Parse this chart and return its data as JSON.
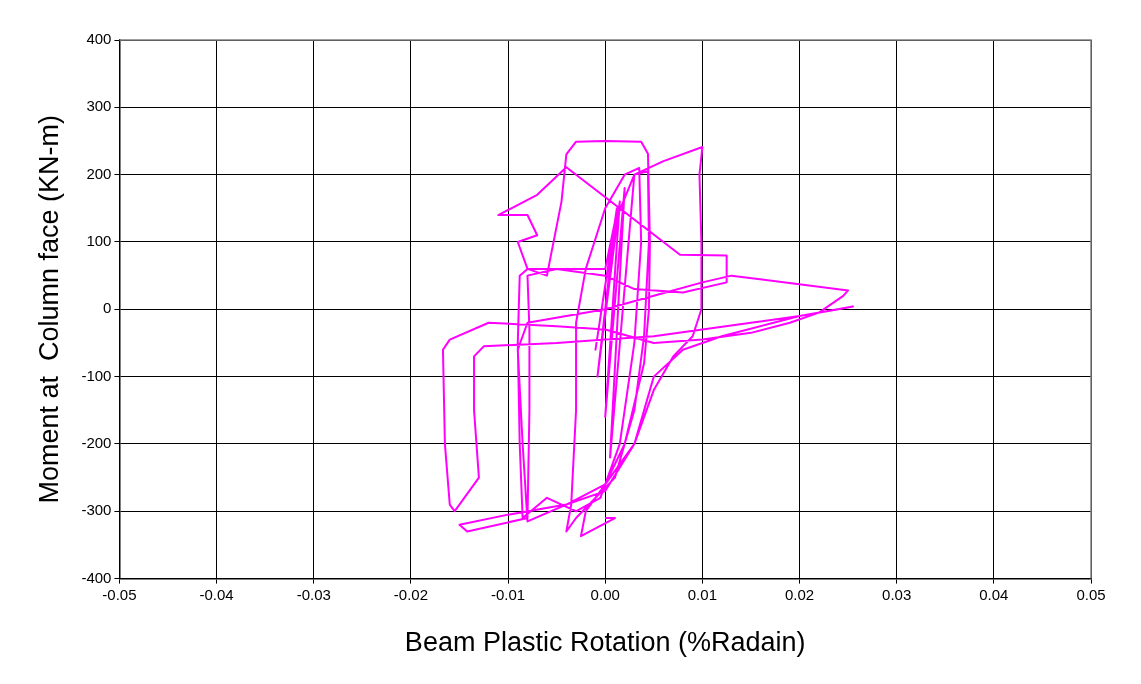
{
  "chart_data": {
    "type": "line",
    "xlabel": "Beam Plastic Rotation (%Radain)",
    "ylabel": "Moment at  Column face (KN-m)",
    "x": [
      0,
      0.001,
      -0.001,
      0.0012,
      -0.0008,
      0.0015,
      0,
      0.002,
      0.0005,
      0.003,
      0.0044,
      0.0045,
      0.004,
      0.003,
      0.001,
      -0.003,
      -0.004,
      -0.0035,
      -0.003,
      -0.003,
      -0.002,
      0,
      0.002,
      0.0035,
      0.0037,
      0.003,
      0.0015,
      -0.0005,
      -0.003,
      -0.006,
      -0.0085,
      -0.0088,
      -0.009,
      -0.0088,
      -0.008,
      -0.003,
      0,
      0.001,
      0.003,
      0.006,
      0.01,
      0.0097,
      0.0099,
      0.0099,
      0.009,
      0.007,
      0.005,
      0.003,
      0,
      -0.004,
      -0.008,
      -0.0085,
      -0.009,
      -0.008,
      -0.004,
      0,
      0.005,
      0.01,
      0.013,
      0.025,
      0.0245,
      0.022,
      0.019,
      0.015,
      0.01,
      0.005,
      0,
      -0.005,
      -0.012,
      -0.016,
      -0.0167,
      -0.0165,
      -0.016,
      -0.0155,
      -0.0135,
      -0.013,
      -0.0135,
      -0.0135,
      -0.0125,
      -0.005,
      0,
      0.005,
      0.01,
      0.015,
      0.02,
      0.0255,
      0.024,
      0.02,
      0.012,
      0.008,
      0.005,
      0.003,
      0,
      -0.004,
      -0.01,
      -0.015,
      -0.0142,
      -0.008,
      -0.0078,
      -0.0078,
      -0.008,
      -0.005,
      0,
      0.003,
      0.008,
      0.0125,
      0.0125,
      0.0077,
      -0.004,
      -0.007,
      -0.011,
      -0.008,
      -0.007,
      -0.009,
      -0.008,
      -0.006,
      -0.0045,
      -0.004,
      -0.003,
      0,
      0.0037,
      0.0044,
      0.0046,
      0.0045,
      0.004,
      0.002,
      0,
      -0.002,
      -0.0025,
      0.001,
      0
    ],
    "series": [
      {
        "color": "#ff00ff",
        "values": [
          0,
          130,
          -60,
          150,
          -100,
          160,
          -160,
          180,
          -220,
          200,
          205,
          100,
          -40,
          -150,
          -250,
          -310,
          -330,
          -290,
          -150,
          -20,
          60,
          150,
          200,
          210,
          100,
          -50,
          -200,
          -280,
          -300,
          -280,
          -310,
          -200,
          -50,
          50,
          60,
          60,
          60,
          130,
          200,
          220,
          241,
          200,
          100,
          0,
          -40,
          -70,
          -120,
          -200,
          -270,
          -290,
          -315,
          -200,
          -60,
          -20,
          -10,
          0,
          20,
          40,
          50,
          28,
          20,
          -5,
          -20,
          -35,
          -45,
          -50,
          -30,
          -25,
          -20,
          -45,
          -60,
          -200,
          -290,
          -300,
          -260,
          -250,
          -150,
          -70,
          -55,
          -50,
          -45,
          -40,
          -30,
          -20,
          -10,
          4,
          0,
          -10,
          -40,
          -60,
          -100,
          -200,
          -260,
          -290,
          -305,
          -320,
          -330,
          -310,
          -150,
          -30,
          50,
          60,
          50,
          30,
          25,
          40,
          80,
          81,
          211,
          170,
          140,
          140,
          110,
          100,
          60,
          50,
          160,
          230,
          249,
          250,
          249,
          231,
          100,
          0,
          -80,
          -200,
          -260,
          -300,
          -337,
          -310,
          -310
        ]
      }
    ],
    "xlim": [
      -0.05,
      0.05
    ],
    "xticks": [
      -0.05,
      -0.04,
      -0.03,
      -0.02,
      -0.01,
      {
        "value": 0,
        "label": "0.00"
      },
      0.01,
      0.02,
      0.03,
      0.04,
      0.05
    ],
    "ylim": [
      -400,
      400
    ],
    "yticks": [
      -400,
      -300,
      -200,
      -100,
      0,
      100,
      200,
      300,
      400
    ],
    "grid": true,
    "legend": false,
    "marker": "none",
    "line_style": "solid"
  }
}
